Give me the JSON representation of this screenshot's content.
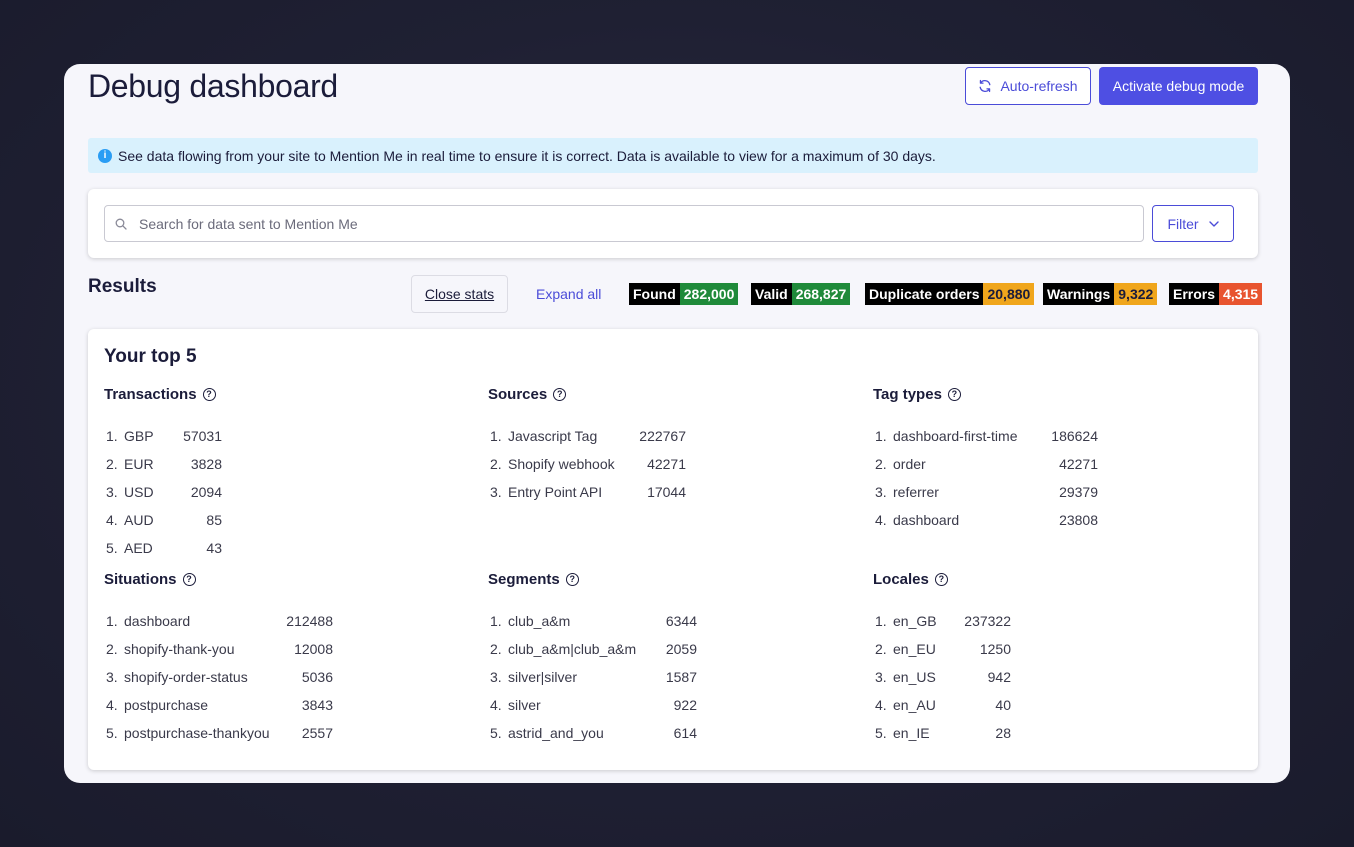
{
  "header": {
    "title": "Debug dashboard",
    "auto_refresh_label": "Auto-refresh",
    "activate_label": "Activate debug mode"
  },
  "info_banner": {
    "text": "See data flowing from your site to Mention Me in real time to ensure it is correct. Data is available to view for a maximum of 30 days."
  },
  "search": {
    "placeholder": "Search for data sent to Mention Me",
    "filter_label": "Filter"
  },
  "results": {
    "title": "Results",
    "close_stats_label": "Close stats",
    "expand_all_label": "Expand all",
    "stats": [
      {
        "label": "Found",
        "value": "282,000",
        "color": "#1f8a3a"
      },
      {
        "label": "Valid",
        "value": "268,827",
        "color": "#1f8a3a"
      },
      {
        "label": "Duplicate orders",
        "value": "20,880",
        "color": "#f0a61c"
      },
      {
        "label": "Warnings",
        "value": "9,322",
        "color": "#f0a61c"
      },
      {
        "label": "Errors",
        "value": "4,315",
        "color": "#e8542f"
      }
    ]
  },
  "top5": {
    "title": "Your top 5",
    "sections": [
      {
        "title": "Transactions",
        "items": [
          {
            "n": "1.",
            "label": "GBP",
            "count": "57031"
          },
          {
            "n": "2.",
            "label": "EUR",
            "count": "3828"
          },
          {
            "n": "3.",
            "label": "USD",
            "count": "2094"
          },
          {
            "n": "4.",
            "label": "AUD",
            "count": "85"
          },
          {
            "n": "5.",
            "label": "AED",
            "count": "43"
          }
        ]
      },
      {
        "title": "Sources",
        "items": [
          {
            "n": "1.",
            "label": "Javascript Tag",
            "count": "222767"
          },
          {
            "n": "2.",
            "label": "Shopify webhook",
            "count": "42271"
          },
          {
            "n": "3.",
            "label": "Entry Point API",
            "count": "17044"
          }
        ]
      },
      {
        "title": "Tag types",
        "items": [
          {
            "n": "1.",
            "label": "dashboard-first-time",
            "count": "186624"
          },
          {
            "n": "2.",
            "label": "order",
            "count": "42271"
          },
          {
            "n": "3.",
            "label": "referrer",
            "count": "29379"
          },
          {
            "n": "4.",
            "label": "dashboard",
            "count": "23808"
          }
        ]
      },
      {
        "title": "Situations",
        "items": [
          {
            "n": "1.",
            "label": "dashboard",
            "count": "212488"
          },
          {
            "n": "2.",
            "label": "shopify-thank-you",
            "count": "12008"
          },
          {
            "n": "3.",
            "label": "shopify-order-status",
            "count": "5036"
          },
          {
            "n": "4.",
            "label": "postpurchase",
            "count": "3843"
          },
          {
            "n": "5.",
            "label": "postpurchase-thankyou",
            "count": "2557"
          }
        ]
      },
      {
        "title": "Segments",
        "items": [
          {
            "n": "1.",
            "label": "club_a&m",
            "count": "6344"
          },
          {
            "n": "2.",
            "label": "club_a&m|club_a&m",
            "count": "2059"
          },
          {
            "n": "3.",
            "label": "silver|silver",
            "count": "1587"
          },
          {
            "n": "4.",
            "label": "silver",
            "count": "922"
          },
          {
            "n": "5.",
            "label": "astrid_and_you",
            "count": "614"
          }
        ]
      },
      {
        "title": "Locales",
        "items": [
          {
            "n": "1.",
            "label": "en_GB",
            "count": "237322"
          },
          {
            "n": "2.",
            "label": "en_EU",
            "count": "1250"
          },
          {
            "n": "3.",
            "label": "en_US",
            "count": "942"
          },
          {
            "n": "4.",
            "label": "en_AU",
            "count": "40"
          },
          {
            "n": "5.",
            "label": "en_IE",
            "count": "28"
          }
        ]
      }
    ]
  }
}
